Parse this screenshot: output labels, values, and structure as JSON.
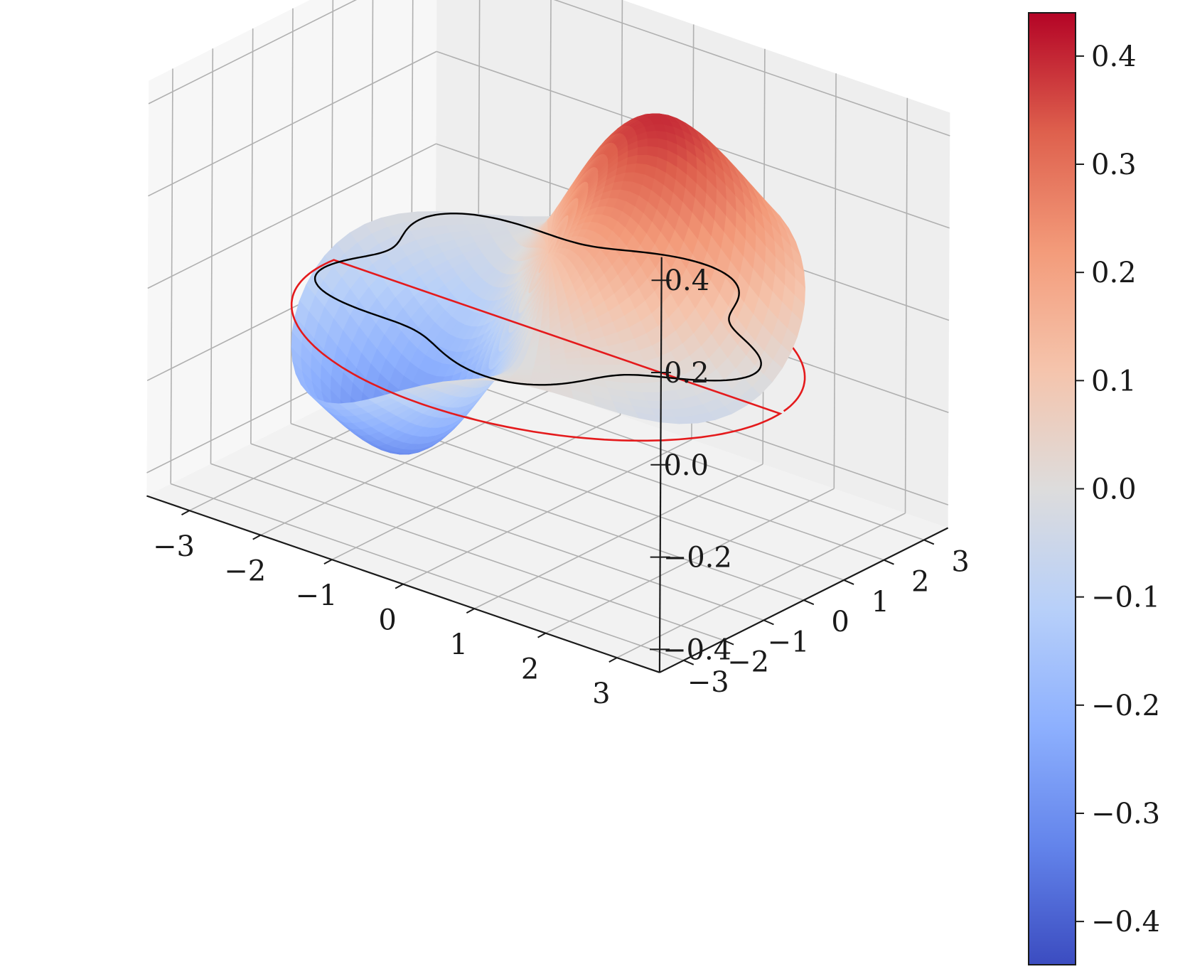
{
  "chart_data": {
    "type": "surface3d",
    "title": "",
    "xlabel": "",
    "ylabel": "",
    "zlabel": "",
    "colormap": "coolwarm",
    "x_ticks": [
      "−3",
      "−2",
      "−1",
      "0",
      "1",
      "2",
      "3"
    ],
    "y_ticks": [
      "−3",
      "−2",
      "−1",
      "0",
      "1",
      "2",
      "3"
    ],
    "z_ticks": [
      "−0.4",
      "−0.2",
      "0.0",
      "0.2",
      "0.4"
    ],
    "x_range": [
      -3.6,
      3.6
    ],
    "y_range": [
      -3.6,
      3.6
    ],
    "z_range": [
      -0.45,
      0.45
    ],
    "surface": {
      "description_values": {
        "peak_max": 0.44,
        "trough_min": -0.44
      }
    },
    "curves": [
      {
        "color": "#e41a1c",
        "shape": "circle",
        "radius": 3.14,
        "z": -0.08
      },
      {
        "color": "#000000",
        "shape": "lobed-contour",
        "z": 0.0
      }
    ],
    "colorbar": {
      "ticks": [
        "−0.4",
        "−0.3",
        "−0.2",
        "−0.1",
        "0.0",
        "0.1",
        "0.2",
        "0.3",
        "0.4"
      ],
      "range": [
        -0.44,
        0.44
      ]
    },
    "grid": true
  }
}
